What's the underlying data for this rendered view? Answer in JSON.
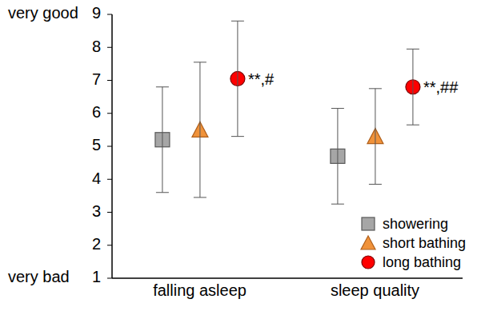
{
  "chart_data": {
    "type": "dot_error",
    "categories": [
      "falling asleep",
      "sleep quality"
    ],
    "series": [
      {
        "name": "showering",
        "color": "#a6a6a6",
        "marker": "square",
        "values": [
          5.2,
          4.7
        ],
        "error": [
          1.6,
          1.45
        ]
      },
      {
        "name": "short bathing",
        "color": "#f0923a",
        "marker": "triangle",
        "values": [
          5.5,
          5.3
        ],
        "error": [
          2.05,
          1.45
        ]
      },
      {
        "name": "long bathing",
        "color": "#ff0000",
        "marker": "circle",
        "values": [
          7.05,
          6.8
        ],
        "error": [
          1.75,
          1.15
        ],
        "annotations": [
          "**,#",
          "**,##"
        ]
      }
    ],
    "ylim": [
      1,
      9
    ],
    "yticks": [
      1,
      2,
      3,
      4,
      5,
      6,
      7,
      8,
      9
    ],
    "axis_annotations": [
      {
        "value": 9,
        "label": "very good"
      },
      {
        "value": 1,
        "label": "very bad"
      }
    ],
    "grid": false,
    "legend": "lower right"
  }
}
